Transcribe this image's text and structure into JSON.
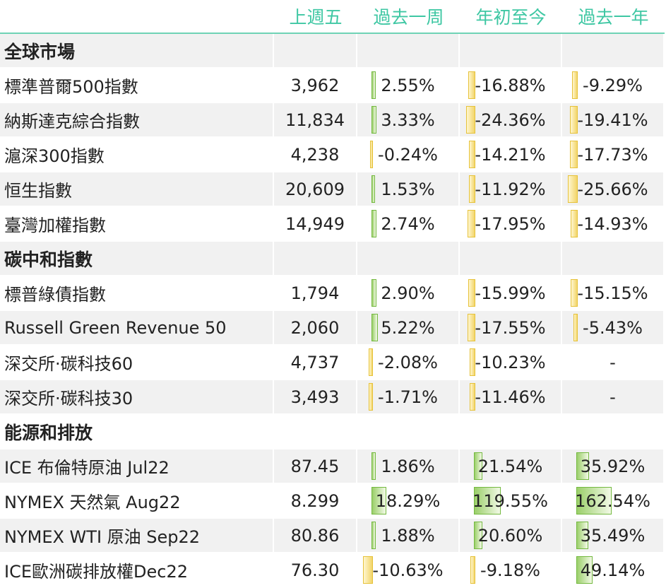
{
  "headers": [
    "",
    "上週五",
    "過去一周",
    "年初至今",
    "過去一年"
  ],
  "colors": {
    "header": "#3ec7a3",
    "positive_bar": "#9bcf6a",
    "negative_bar": "#f2d56a"
  },
  "rows": [
    {
      "section": true,
      "name": "全球市場"
    },
    {
      "name": "標準普爾500指數",
      "last": "3,962",
      "week": "2.55%",
      "week_v": 2.55,
      "ytd": "-16.88%",
      "ytd_v": -16.88,
      "year": "-9.29%",
      "year_v": -9.29
    },
    {
      "name": "納斯達克綜合指數",
      "last": "11,834",
      "week": "3.33%",
      "week_v": 3.33,
      "ytd": "-24.36%",
      "ytd_v": -24.36,
      "year": "-19.41%",
      "year_v": -19.41
    },
    {
      "name": "滬深300指數",
      "last": "4,238",
      "week": "-0.24%",
      "week_v": -0.24,
      "ytd": "-14.21%",
      "ytd_v": -14.21,
      "year": "-17.73%",
      "year_v": -17.73
    },
    {
      "name": "恒生指數",
      "last": "20,609",
      "week": "1.53%",
      "week_v": 1.53,
      "ytd": "-11.92%",
      "ytd_v": -11.92,
      "year": "-25.66%",
      "year_v": -25.66
    },
    {
      "name": "臺灣加權指數",
      "last": "14,949",
      "week": "2.74%",
      "week_v": 2.74,
      "ytd": "-17.95%",
      "ytd_v": -17.95,
      "year": "-14.93%",
      "year_v": -14.93
    },
    {
      "section": true,
      "name": "碳中和指數"
    },
    {
      "name": "標普綠債指數",
      "last": "1,794",
      "week": "2.90%",
      "week_v": 2.9,
      "ytd": "-15.99%",
      "ytd_v": -15.99,
      "year": "-15.15%",
      "year_v": -15.15
    },
    {
      "name": "Russell Green Revenue 50",
      "last": "2,060",
      "week": "5.22%",
      "week_v": 5.22,
      "ytd": "-17.55%",
      "ytd_v": -17.55,
      "year": "-5.43%",
      "year_v": -5.43
    },
    {
      "name": "深交所·碳科技60",
      "last": "4,737",
      "week": "-2.08%",
      "week_v": -2.08,
      "ytd": "-10.23%",
      "ytd_v": -10.23,
      "year": "-",
      "year_v": null
    },
    {
      "name": "深交所·碳科技30",
      "last": "3,493",
      "week": "-1.71%",
      "week_v": -1.71,
      "ytd": "-11.46%",
      "ytd_v": -11.46,
      "year": "-",
      "year_v": null
    },
    {
      "section": true,
      "name": "能源和排放"
    },
    {
      "name": "ICE 布倫特原油 Jul22",
      "last": "87.45",
      "week": "1.86%",
      "week_v": 1.86,
      "ytd": "21.54%",
      "ytd_v": 21.54,
      "year": "35.92%",
      "year_v": 35.92
    },
    {
      "name": "NYMEX 天然氣 Aug22",
      "last": "8.299",
      "week": "18.29%",
      "week_v": 18.29,
      "ytd": "119.55%",
      "ytd_v": 119.55,
      "year": "162.54%",
      "year_v": 162.54
    },
    {
      "name": "NYMEX WTI 原油 Sep22",
      "last": "80.86",
      "week": "1.88%",
      "week_v": 1.88,
      "ytd": "20.60%",
      "ytd_v": 20.6,
      "year": "35.49%",
      "year_v": 35.49
    },
    {
      "name": "ICE歐洲碳排放權Dec22",
      "last": "76.30",
      "week": "-10.63%",
      "week_v": -10.63,
      "ytd": "-9.18%",
      "ytd_v": -9.18,
      "year": "49.14%",
      "year_v": 49.14
    }
  ]
}
